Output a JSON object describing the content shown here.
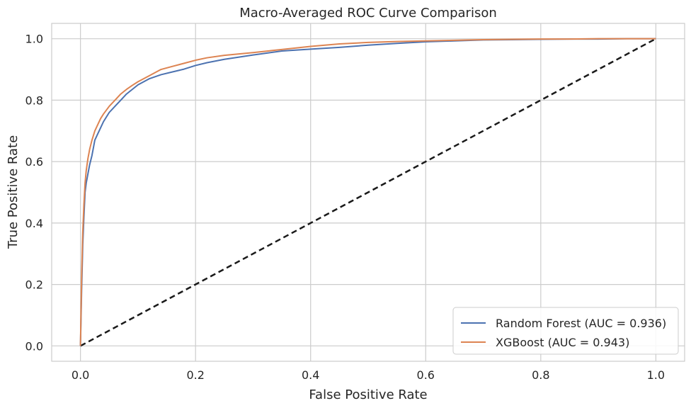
{
  "chart_data": {
    "type": "line",
    "title": "Macro-Averaged ROC Curve Comparison",
    "xlabel": "False Positive Rate",
    "ylabel": "True Positive Rate",
    "xlim": [
      -0.05,
      1.05
    ],
    "ylim": [
      -0.05,
      1.05
    ],
    "xticks": [
      "0.0",
      "0.2",
      "0.4",
      "0.6",
      "0.8",
      "1.0"
    ],
    "yticks": [
      "0.0",
      "0.2",
      "0.4",
      "0.6",
      "0.8",
      "1.0"
    ],
    "grid": true,
    "legend_position": "lower-right",
    "series": [
      {
        "name": "Random Forest (AUC = 0.936)",
        "color": "#4c72b0",
        "x": [
          0,
          0.002,
          0.004,
          0.006,
          0.008,
          0.01,
          0.013,
          0.016,
          0.02,
          0.025,
          0.03,
          0.035,
          0.04,
          0.05,
          0.06,
          0.07,
          0.08,
          0.09,
          0.1,
          0.12,
          0.14,
          0.16,
          0.18,
          0.2,
          0.22,
          0.25,
          0.3,
          0.35,
          0.4,
          0.45,
          0.5,
          0.55,
          0.6,
          0.65,
          0.7,
          0.75,
          0.8,
          0.85,
          0.9,
          0.95,
          1.0
        ],
        "y": [
          0,
          0.18,
          0.33,
          0.42,
          0.5,
          0.53,
          0.56,
          0.59,
          0.62,
          0.67,
          0.69,
          0.71,
          0.73,
          0.76,
          0.78,
          0.8,
          0.82,
          0.835,
          0.85,
          0.87,
          0.883,
          0.892,
          0.901,
          0.913,
          0.922,
          0.933,
          0.947,
          0.96,
          0.966,
          0.972,
          0.979,
          0.985,
          0.99,
          0.993,
          0.996,
          0.997,
          0.998,
          0.999,
          0.999,
          1.0,
          1.0
        ]
      },
      {
        "name": "XGBoost (AUC = 0.943)",
        "color": "#dd8452",
        "x": [
          0,
          0.002,
          0.004,
          0.006,
          0.008,
          0.01,
          0.013,
          0.016,
          0.02,
          0.025,
          0.03,
          0.035,
          0.04,
          0.05,
          0.06,
          0.07,
          0.08,
          0.09,
          0.1,
          0.12,
          0.14,
          0.16,
          0.18,
          0.2,
          0.22,
          0.25,
          0.3,
          0.35,
          0.4,
          0.45,
          0.5,
          0.55,
          0.6,
          0.65,
          0.7,
          0.75,
          0.8,
          0.85,
          0.9,
          0.95,
          1.0
        ],
        "y": [
          0,
          0.22,
          0.37,
          0.46,
          0.53,
          0.57,
          0.61,
          0.64,
          0.67,
          0.7,
          0.72,
          0.74,
          0.755,
          0.78,
          0.8,
          0.82,
          0.835,
          0.848,
          0.86,
          0.88,
          0.9,
          0.91,
          0.92,
          0.93,
          0.938,
          0.946,
          0.955,
          0.965,
          0.975,
          0.983,
          0.988,
          0.991,
          0.993,
          0.995,
          0.997,
          0.998,
          0.999,
          0.999,
          1.0,
          1.0,
          1.0
        ]
      },
      {
        "name": "",
        "color": "#1a1a1a",
        "dashed": true,
        "x": [
          0,
          1
        ],
        "y": [
          0,
          1
        ]
      }
    ]
  }
}
